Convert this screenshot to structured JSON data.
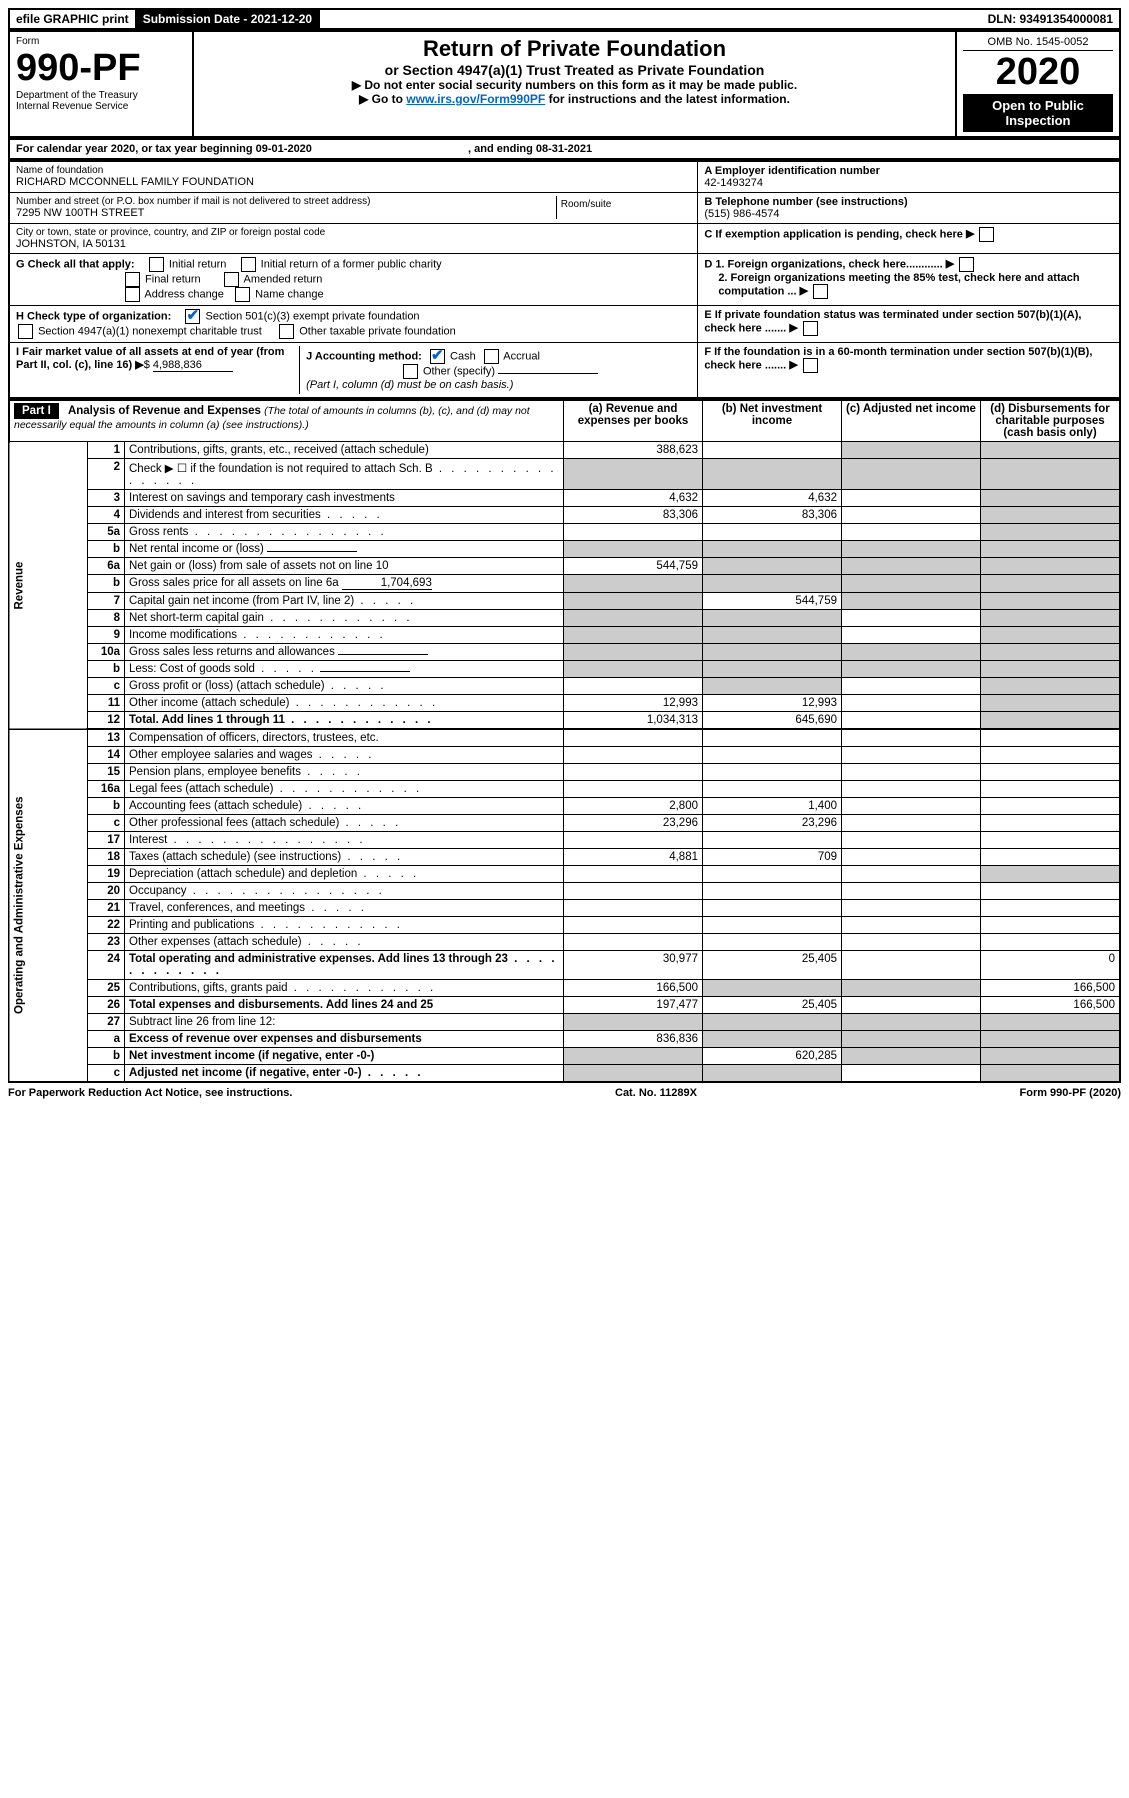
{
  "topbar": {
    "efile": "efile GRAPHIC print",
    "submission": "Submission Date - 2021-12-20",
    "dln": "DLN: 93491354000081"
  },
  "header": {
    "form_label": "Form",
    "form_number": "990-PF",
    "dept": "Department of the Treasury",
    "irs": "Internal Revenue Service",
    "title": "Return of Private Foundation",
    "subtitle": "or Section 4947(a)(1) Trust Treated as Private Foundation",
    "instr1": "▶ Do not enter social security numbers on this form as it may be made public.",
    "instr2_pre": "▶ Go to ",
    "instr2_link": "www.irs.gov/Form990PF",
    "instr2_post": " for instructions and the latest information.",
    "omb": "OMB No. 1545-0052",
    "year": "2020",
    "open": "Open to Public Inspection"
  },
  "period": {
    "label": "For calendar year 2020, or tax year beginning 09-01-2020",
    "ending": ", and ending 08-31-2021"
  },
  "id": {
    "name_label": "Name of foundation",
    "name": "RICHARD MCCONNELL FAMILY FOUNDATION",
    "addr_label": "Number and street (or P.O. box number if mail is not delivered to street address)",
    "addr": "7295 NW 100TH STREET",
    "room_label": "Room/suite",
    "city_label": "City or town, state or province, country, and ZIP or foreign postal code",
    "city": "JOHNSTON, IA  50131",
    "a_label": "A Employer identification number",
    "a_val": "42-1493274",
    "b_label": "B Telephone number (see instructions)",
    "b_val": "(515) 986-4574",
    "c_label": "C If exemption application is pending, check here",
    "d1": "D 1. Foreign organizations, check here............",
    "d2": "2. Foreign organizations meeting the 85% test, check here and attach computation ...",
    "e": "E  If private foundation status was terminated under section 507(b)(1)(A), check here .......",
    "f": "F  If the foundation is in a 60-month termination under section 507(b)(1)(B), check here .......",
    "g_label": "G Check all that apply:",
    "g_opts": [
      "Initial return",
      "Initial return of a former public charity",
      "Final return",
      "Amended return",
      "Address change",
      "Name change"
    ],
    "h_label": "H Check type of organization:",
    "h_opts": [
      "Section 501(c)(3) exempt private foundation",
      "Section 4947(a)(1) nonexempt charitable trust",
      "Other taxable private foundation"
    ],
    "i_label": "I Fair market value of all assets at end of year (from Part II, col. (c), line 16)",
    "i_val": "4,988,836",
    "j_label": "J Accounting method:",
    "j_opts": [
      "Cash",
      "Accrual",
      "Other (specify)"
    ],
    "j_note": "(Part I, column (d) must be on cash basis.)"
  },
  "part1": {
    "label": "Part I",
    "title": "Analysis of Revenue and Expenses",
    "title_note": "(The total of amounts in columns (b), (c), and (d) may not necessarily equal the amounts in column (a) (see instructions).)",
    "col_a": "(a)   Revenue and expenses per books",
    "col_b": "(b)   Net investment income",
    "col_c": "(c)   Adjusted net income",
    "col_d": "(d)   Disbursements for charitable purposes (cash basis only)",
    "side_rev": "Revenue",
    "side_exp": "Operating and Administrative Expenses"
  },
  "rows": [
    {
      "n": "1",
      "label": "Contributions, gifts, grants, etc., received (attach schedule)",
      "a": "388,623",
      "b": "",
      "c": "grey",
      "d": "grey"
    },
    {
      "n": "2",
      "label": "Check ▶ ☐ if the foundation is not required to attach Sch. B",
      "dots": "l",
      "a": "grey",
      "b": "grey",
      "c": "grey",
      "d": "grey"
    },
    {
      "n": "3",
      "label": "Interest on savings and temporary cash investments",
      "a": "4,632",
      "b": "4,632",
      "c": "",
      "d": "grey"
    },
    {
      "n": "4",
      "label": "Dividends and interest from securities",
      "dots": "s",
      "a": "83,306",
      "b": "83,306",
      "c": "",
      "d": "grey"
    },
    {
      "n": "5a",
      "label": "Gross rents",
      "dots": "l",
      "a": "",
      "b": "",
      "c": "",
      "d": "grey"
    },
    {
      "n": "b",
      "label": "Net rental income or (loss)",
      "under": true,
      "a": "grey",
      "b": "grey",
      "c": "grey",
      "d": "grey"
    },
    {
      "n": "6a",
      "label": "Net gain or (loss) from sale of assets not on line 10",
      "a": "544,759",
      "b": "grey",
      "c": "grey",
      "d": "grey"
    },
    {
      "n": "b",
      "label": "Gross sales price for all assets on line 6a",
      "under": true,
      "uval": "1,704,693",
      "a": "grey",
      "b": "grey",
      "c": "grey",
      "d": "grey"
    },
    {
      "n": "7",
      "label": "Capital gain net income (from Part IV, line 2)",
      "dots": "s",
      "a": "grey",
      "b": "544,759",
      "c": "grey",
      "d": "grey"
    },
    {
      "n": "8",
      "label": "Net short-term capital gain",
      "dots": "m",
      "a": "grey",
      "b": "grey",
      "c": "",
      "d": "grey"
    },
    {
      "n": "9",
      "label": "Income modifications",
      "dots": "m",
      "a": "grey",
      "b": "grey",
      "c": "",
      "d": "grey"
    },
    {
      "n": "10a",
      "label": "Gross sales less returns and allowances",
      "under": true,
      "a": "grey",
      "b": "grey",
      "c": "grey",
      "d": "grey"
    },
    {
      "n": "b",
      "label": "Less: Cost of goods sold",
      "dots": "s",
      "under": true,
      "a": "grey",
      "b": "grey",
      "c": "grey",
      "d": "grey"
    },
    {
      "n": "c",
      "label": "Gross profit or (loss) (attach schedule)",
      "dots": "s",
      "a": "",
      "b": "grey",
      "c": "",
      "d": "grey"
    },
    {
      "n": "11",
      "label": "Other income (attach schedule)",
      "dots": "m",
      "a": "12,993",
      "b": "12,993",
      "c": "",
      "d": "grey"
    },
    {
      "n": "12",
      "label": "Total. Add lines 1 through 11",
      "dots": "m",
      "bold": true,
      "a": "1,034,313",
      "b": "645,690",
      "c": "",
      "d": "grey"
    },
    {
      "n": "13",
      "label": "Compensation of officers, directors, trustees, etc.",
      "a": "",
      "b": "",
      "c": "",
      "d": ""
    },
    {
      "n": "14",
      "label": "Other employee salaries and wages",
      "dots": "s",
      "a": "",
      "b": "",
      "c": "",
      "d": ""
    },
    {
      "n": "15",
      "label": "Pension plans, employee benefits",
      "dots": "s",
      "a": "",
      "b": "",
      "c": "",
      "d": ""
    },
    {
      "n": "16a",
      "label": "Legal fees (attach schedule)",
      "dots": "m",
      "a": "",
      "b": "",
      "c": "",
      "d": ""
    },
    {
      "n": "b",
      "label": "Accounting fees (attach schedule)",
      "dots": "s",
      "a": "2,800",
      "b": "1,400",
      "c": "",
      "d": ""
    },
    {
      "n": "c",
      "label": "Other professional fees (attach schedule)",
      "dots": "s",
      "a": "23,296",
      "b": "23,296",
      "c": "",
      "d": ""
    },
    {
      "n": "17",
      "label": "Interest",
      "dots": "l",
      "a": "",
      "b": "",
      "c": "",
      "d": ""
    },
    {
      "n": "18",
      "label": "Taxes (attach schedule) (see instructions)",
      "dots": "s",
      "a": "4,881",
      "b": "709",
      "c": "",
      "d": ""
    },
    {
      "n": "19",
      "label": "Depreciation (attach schedule) and depletion",
      "dots": "s",
      "a": "",
      "b": "",
      "c": "",
      "d": "grey"
    },
    {
      "n": "20",
      "label": "Occupancy",
      "dots": "l",
      "a": "",
      "b": "",
      "c": "",
      "d": ""
    },
    {
      "n": "21",
      "label": "Travel, conferences, and meetings",
      "dots": "s",
      "a": "",
      "b": "",
      "c": "",
      "d": ""
    },
    {
      "n": "22",
      "label": "Printing and publications",
      "dots": "m",
      "a": "",
      "b": "",
      "c": "",
      "d": ""
    },
    {
      "n": "23",
      "label": "Other expenses (attach schedule)",
      "dots": "s",
      "a": "",
      "b": "",
      "c": "",
      "d": ""
    },
    {
      "n": "24",
      "label": "Total operating and administrative expenses. Add lines 13 through 23",
      "dots": "m",
      "bold": true,
      "a": "30,977",
      "b": "25,405",
      "c": "",
      "d": "0"
    },
    {
      "n": "25",
      "label": "Contributions, gifts, grants paid",
      "dots": "m",
      "a": "166,500",
      "b": "grey",
      "c": "grey",
      "d": "166,500"
    },
    {
      "n": "26",
      "label": "Total expenses and disbursements. Add lines 24 and 25",
      "bold": true,
      "a": "197,477",
      "b": "25,405",
      "c": "",
      "d": "166,500"
    },
    {
      "n": "27",
      "label": "Subtract line 26 from line 12:",
      "a": "grey",
      "b": "grey",
      "c": "grey",
      "d": "grey"
    },
    {
      "n": "a",
      "label": "Excess of revenue over expenses and disbursements",
      "bold": true,
      "a": "836,836",
      "b": "grey",
      "c": "grey",
      "d": "grey"
    },
    {
      "n": "b",
      "label": "Net investment income (if negative, enter -0-)",
      "bold": true,
      "a": "grey",
      "b": "620,285",
      "c": "grey",
      "d": "grey"
    },
    {
      "n": "c",
      "label": "Adjusted net income (if negative, enter -0-)",
      "dots": "s",
      "bold": true,
      "a": "grey",
      "b": "grey",
      "c": "",
      "d": "grey"
    }
  ],
  "footer": {
    "left": "For Paperwork Reduction Act Notice, see instructions.",
    "mid": "Cat. No. 11289X",
    "right": "Form 990-PF (2020)"
  },
  "style": {
    "grey": "#cccccc",
    "link": "#0066cc",
    "col_widths": {
      "num": 36,
      "label": 410,
      "val": 130
    }
  }
}
